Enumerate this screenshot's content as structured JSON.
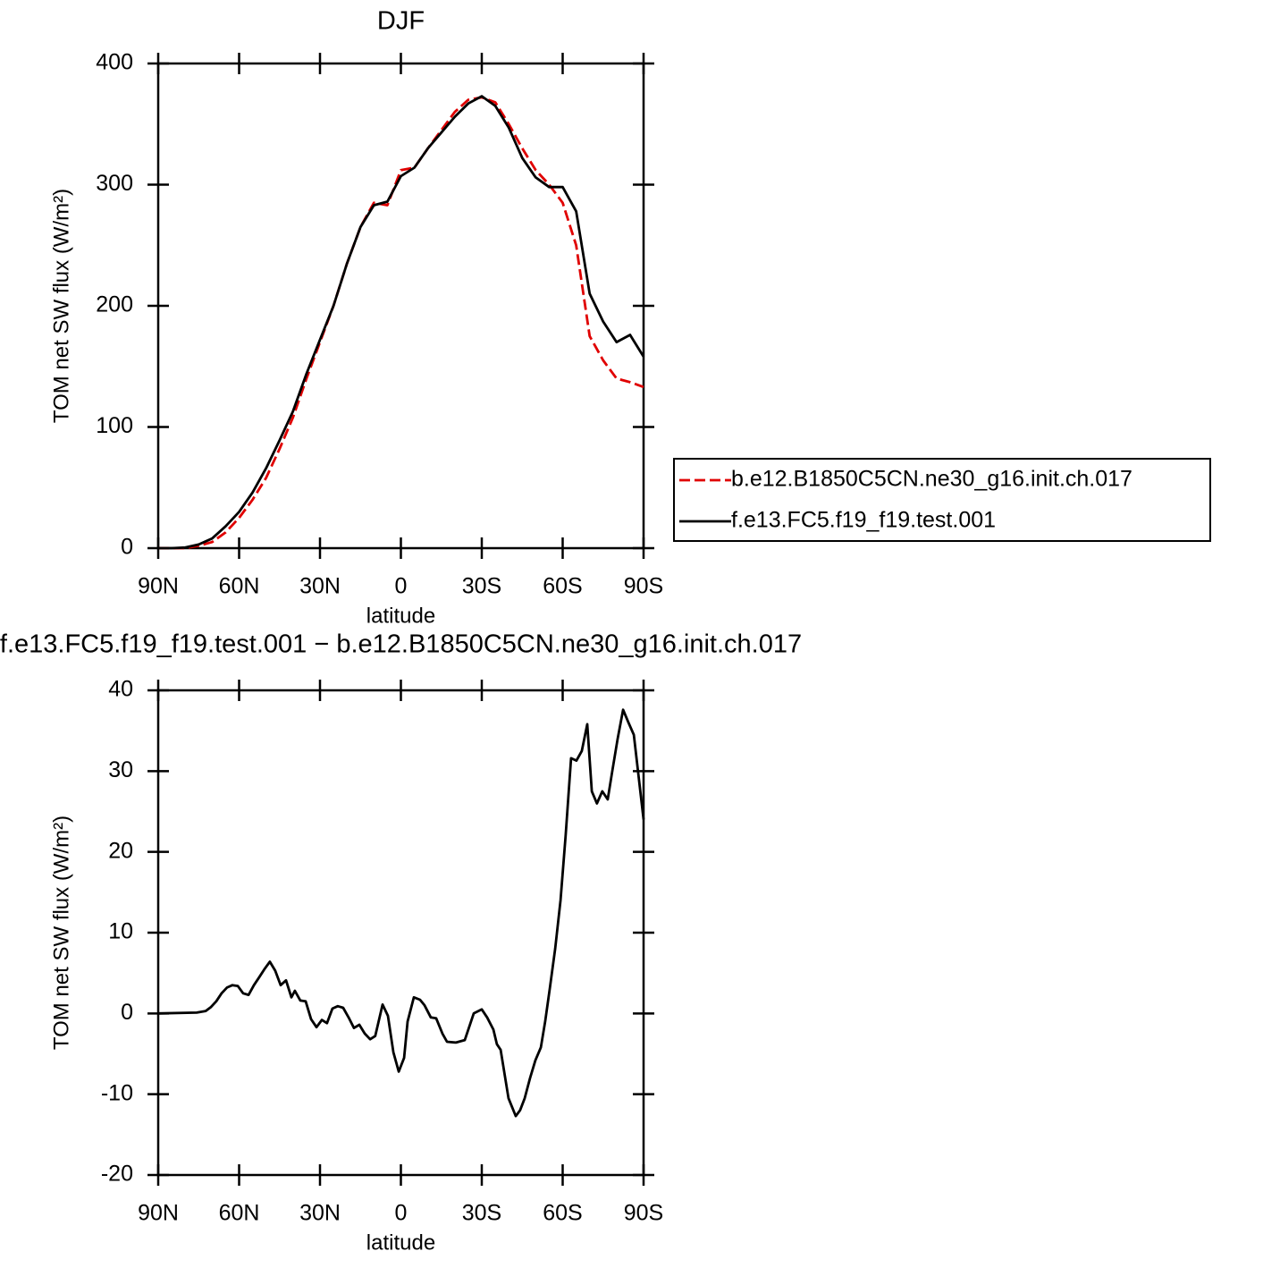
{
  "chart_data": [
    {
      "type": "line",
      "title": "DJF",
      "x_label": "latitude",
      "y_label": "TOM net SW flux (W/m²)",
      "x": [
        90,
        85,
        80,
        75,
        70,
        65,
        60,
        55,
        50,
        45,
        40,
        35,
        30,
        25,
        20,
        15,
        10,
        5,
        0,
        -5,
        -10,
        -15,
        -20,
        -25,
        -30,
        -35,
        -40,
        -45,
        -50,
        -55,
        -60,
        -65,
        -70,
        -75,
        -80,
        -85,
        -90
      ],
      "series": [
        {
          "name": "b.e12.B1850C5CN.ne30_g16.init.ch.017",
          "color": "#e00000",
          "linestyle": "dashed",
          "values": [
            0,
            0,
            0,
            2,
            5,
            13,
            25,
            40,
            58,
            82,
            108,
            140,
            170,
            200,
            235,
            265,
            285,
            283,
            312,
            314,
            330,
            345,
            360,
            370,
            372,
            368,
            350,
            330,
            312,
            300,
            285,
            250,
            175,
            155,
            140,
            137,
            133
          ]
        },
        {
          "name": "f.e13.FC5.f19_f19.test.001",
          "color": "#000000",
          "linestyle": "solid",
          "values": [
            0,
            0,
            0.5,
            3,
            8,
            18,
            30,
            46,
            66,
            89,
            113,
            144,
            172,
            200,
            235,
            265,
            283,
            286,
            307,
            314,
            330,
            343,
            356,
            367,
            373,
            365,
            347,
            322,
            306,
            298,
            298,
            278,
            210,
            187,
            170,
            176,
            158
          ]
        }
      ],
      "xlim": [
        90,
        -90
      ],
      "xticks": [
        {
          "value": 90,
          "label": "90N"
        },
        {
          "value": 60,
          "label": "60N"
        },
        {
          "value": 30,
          "label": "30N"
        },
        0,
        {
          "value": -30,
          "label": "30S"
        },
        {
          "value": -60,
          "label": "60S"
        },
        {
          "value": -90,
          "label": "90S"
        }
      ],
      "ylim": [
        0,
        400
      ],
      "yticks": [
        0,
        100,
        200,
        300,
        400
      ],
      "legend": "right"
    },
    {
      "type": "line",
      "title": "f.e13.FC5.f19_f19.test.001 − b.e12.B1850C5CN.ne30_g16.init.ch.017",
      "x_label": "latitude",
      "y_label": "TOM net SW flux (W/m²)",
      "x": [
        90,
        75.7,
        72.4,
        70.4,
        68.5,
        66.5,
        64.5,
        62.5,
        60.5,
        58.5,
        56.5,
        54.5,
        52.5,
        50.6,
        48.6,
        46.6,
        44.6,
        42.6,
        40.6,
        39.3,
        37.3,
        35.3,
        33.3,
        31.3,
        29.3,
        27.4,
        25.4,
        23.4,
        21.4,
        19.4,
        17.4,
        15.4,
        13.4,
        11.4,
        9.5,
        6.8,
        4.8,
        2.8,
        0.8,
        -1.2,
        -2.5,
        -4.8,
        -7.1,
        -8.8,
        -11.1,
        -13.1,
        -15.4,
        -17.1,
        -20.4,
        -23.7,
        -27,
        -30,
        -32,
        -34.3,
        -35.6,
        -37,
        -39.9,
        -42.6,
        -44.2,
        -45.9,
        -47.9,
        -49.9,
        -51.9,
        -53.5,
        -55.2,
        -57.2,
        -59.2,
        -61.1,
        -63.1,
        -65.1,
        -67.1,
        -69.1,
        -70.8,
        -72.7,
        -74.7,
        -76.7,
        -78.4,
        -80.4,
        -82.4,
        -84.4,
        -86.4,
        -90
      ],
      "values": [
        0,
        0.1,
        0.3,
        0.8,
        1.5,
        2.5,
        3.2,
        3.5,
        3.4,
        2.5,
        2.3,
        3.5,
        4.5,
        5.5,
        6.4,
        5.3,
        3.5,
        4.1,
        2,
        2.8,
        1.6,
        1.5,
        -0.7,
        -1.7,
        -0.8,
        -1.2,
        0.6,
        0.9,
        0.7,
        -0.5,
        -1.8,
        -1.4,
        -2.5,
        -3.2,
        -2.8,
        1.1,
        -0.3,
        -4.8,
        -7.2,
        -5.5,
        -1,
        2,
        1.7,
        1,
        -0.5,
        -0.6,
        -2.5,
        -3.5,
        -3.6,
        -3.3,
        0,
        0.5,
        -0.5,
        -2,
        -3.8,
        -4.5,
        -10.5,
        -12.7,
        -12,
        -10.5,
        -8,
        -5.8,
        -4.2,
        -1,
        3,
        8,
        14,
        22,
        31.6,
        31.3,
        32.5,
        35.8,
        27.5,
        26,
        27.5,
        26.5,
        30,
        34,
        37.6,
        36,
        34.5,
        24
      ],
      "color": "#000000",
      "xlim": [
        90,
        -90
      ],
      "xticks": [
        {
          "value": 90,
          "label": "90N"
        },
        {
          "value": 60,
          "label": "60N"
        },
        {
          "value": 30,
          "label": "30N"
        },
        0,
        {
          "value": -30,
          "label": "30S"
        },
        {
          "value": -60,
          "label": "60S"
        },
        {
          "value": -90,
          "label": "90S"
        }
      ],
      "ylim": [
        -20,
        40
      ],
      "yticks": [
        -20,
        -10,
        0,
        10,
        20,
        30,
        40
      ]
    }
  ]
}
